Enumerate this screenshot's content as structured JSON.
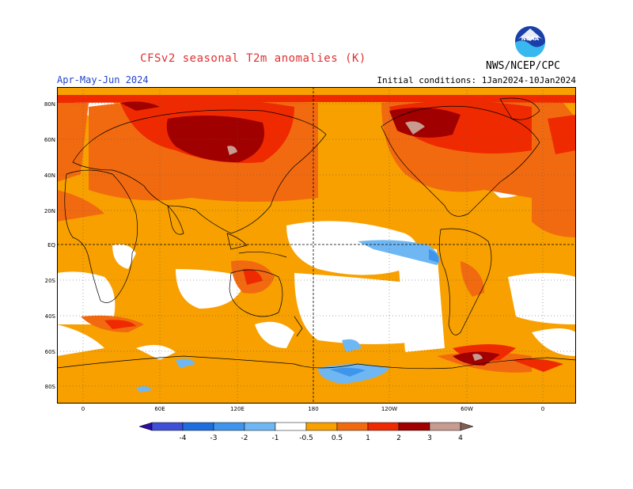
{
  "header": {
    "title": "CFSv2 seasonal T2m anomalies (K)",
    "season": "Apr-May-Jun 2024",
    "initial_conditions": "Initial conditions: 1Jan2024-10Jan2024",
    "agency": "NWS/NCEP/CPC",
    "logo_text": "NOAA"
  },
  "map": {
    "lat_labels": [
      "80N",
      "60N",
      "40N",
      "20N",
      "EQ",
      "20S",
      "40S",
      "60S",
      "80S"
    ],
    "lon_labels": [
      "0",
      "60E",
      "120E",
      "180",
      "120W",
      "60W",
      "0"
    ]
  },
  "colorbar": {
    "labels": [
      "-4",
      "-3",
      "-2",
      "-1",
      "-0.5",
      "0.5",
      "1",
      "2",
      "3",
      "4"
    ],
    "colors": [
      "#2a0fa0",
      "#3f4fd8",
      "#1f6ee0",
      "#3f95ec",
      "#6fb7f2",
      "#ffffff",
      "#f7a000",
      "#f26a10",
      "#ef2a00",
      "#a00000",
      "#c79b8f",
      "#7f5f55"
    ]
  },
  "colors": {
    "warm_05_1": "#f7a000",
    "warm_1_2": "#f26a10",
    "warm_2_3": "#ef2a00",
    "warm_3_4": "#a00000",
    "warm_4": "#c79b8f",
    "cool_05_1": "#6fb7f2",
    "cool_1_2": "#3f95ec"
  }
}
